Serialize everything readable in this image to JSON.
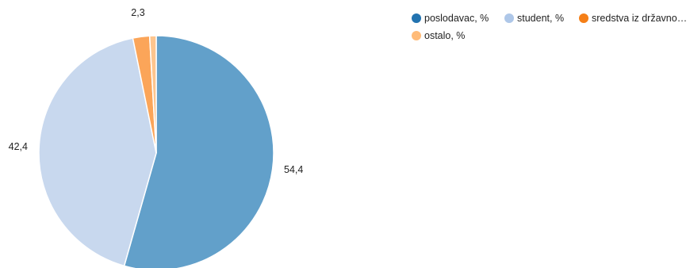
{
  "chart_data": {
    "type": "pie",
    "title": "",
    "slices": [
      {
        "name": "poslodavac, %",
        "legend_label": "poslodavac, %",
        "value": 54.4,
        "label": "54,4",
        "color": "#62a0ca",
        "legend_color": "#2273b0"
      },
      {
        "name": "student, %",
        "legend_label": "student, %",
        "value": 42.4,
        "label": "42,4",
        "color": "#c8d8ee",
        "legend_color": "#aec7e8"
      },
      {
        "name": "sredstva iz državnog...",
        "legend_label": "sredstva iz državnog...",
        "value": 2.3,
        "label": "2,3",
        "color": "#fba559",
        "legend_color": "#f57f17"
      },
      {
        "name": "ostalo, %",
        "legend_label": "ostalo, %",
        "value": 0.9,
        "label": "",
        "color": "#fdc58e",
        "legend_color": "#ffbb78"
      }
    ],
    "legend_position": "top-right"
  }
}
